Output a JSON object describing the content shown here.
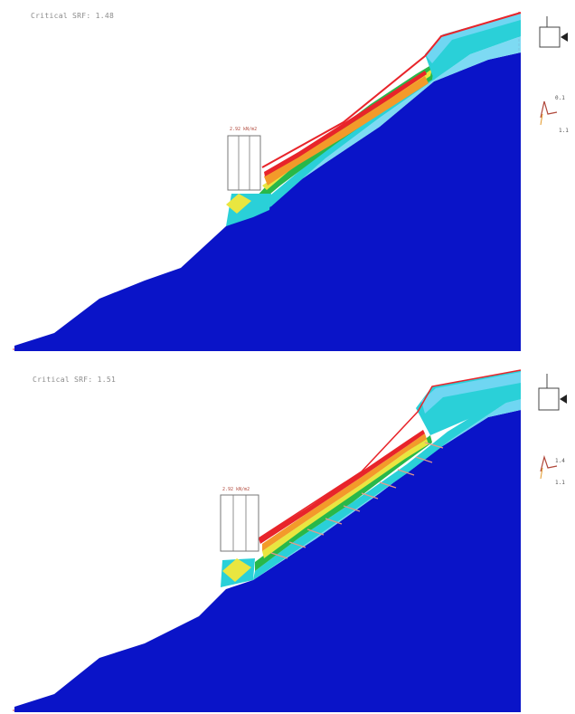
{
  "panels": [
    {
      "id": "top",
      "fos_label": "Critical SRF: 1.48",
      "load_label": "2.92 kN/m2",
      "legend_values": [
        "0.1",
        "1.1"
      ]
    },
    {
      "id": "bottom",
      "fos_label": "Critical SRF: 1.51",
      "load_label": "2.92 kN/m2",
      "legend_values": [
        "1.4",
        "1.1"
      ]
    }
  ],
  "colors": {
    "ground": "#0a14c8",
    "boundary": "#e77f87",
    "strain_red": "#e8242a",
    "strain_orange": "#f39a2a",
    "strain_yellow": "#e9e640",
    "strain_green": "#28b84a",
    "strain_cyan": "#2ad0d8",
    "strain_lightblue": "#6fd6f2"
  },
  "icons": [
    "support-box-icon",
    "load-arrow-icon",
    "contour-legend-icon"
  ]
}
